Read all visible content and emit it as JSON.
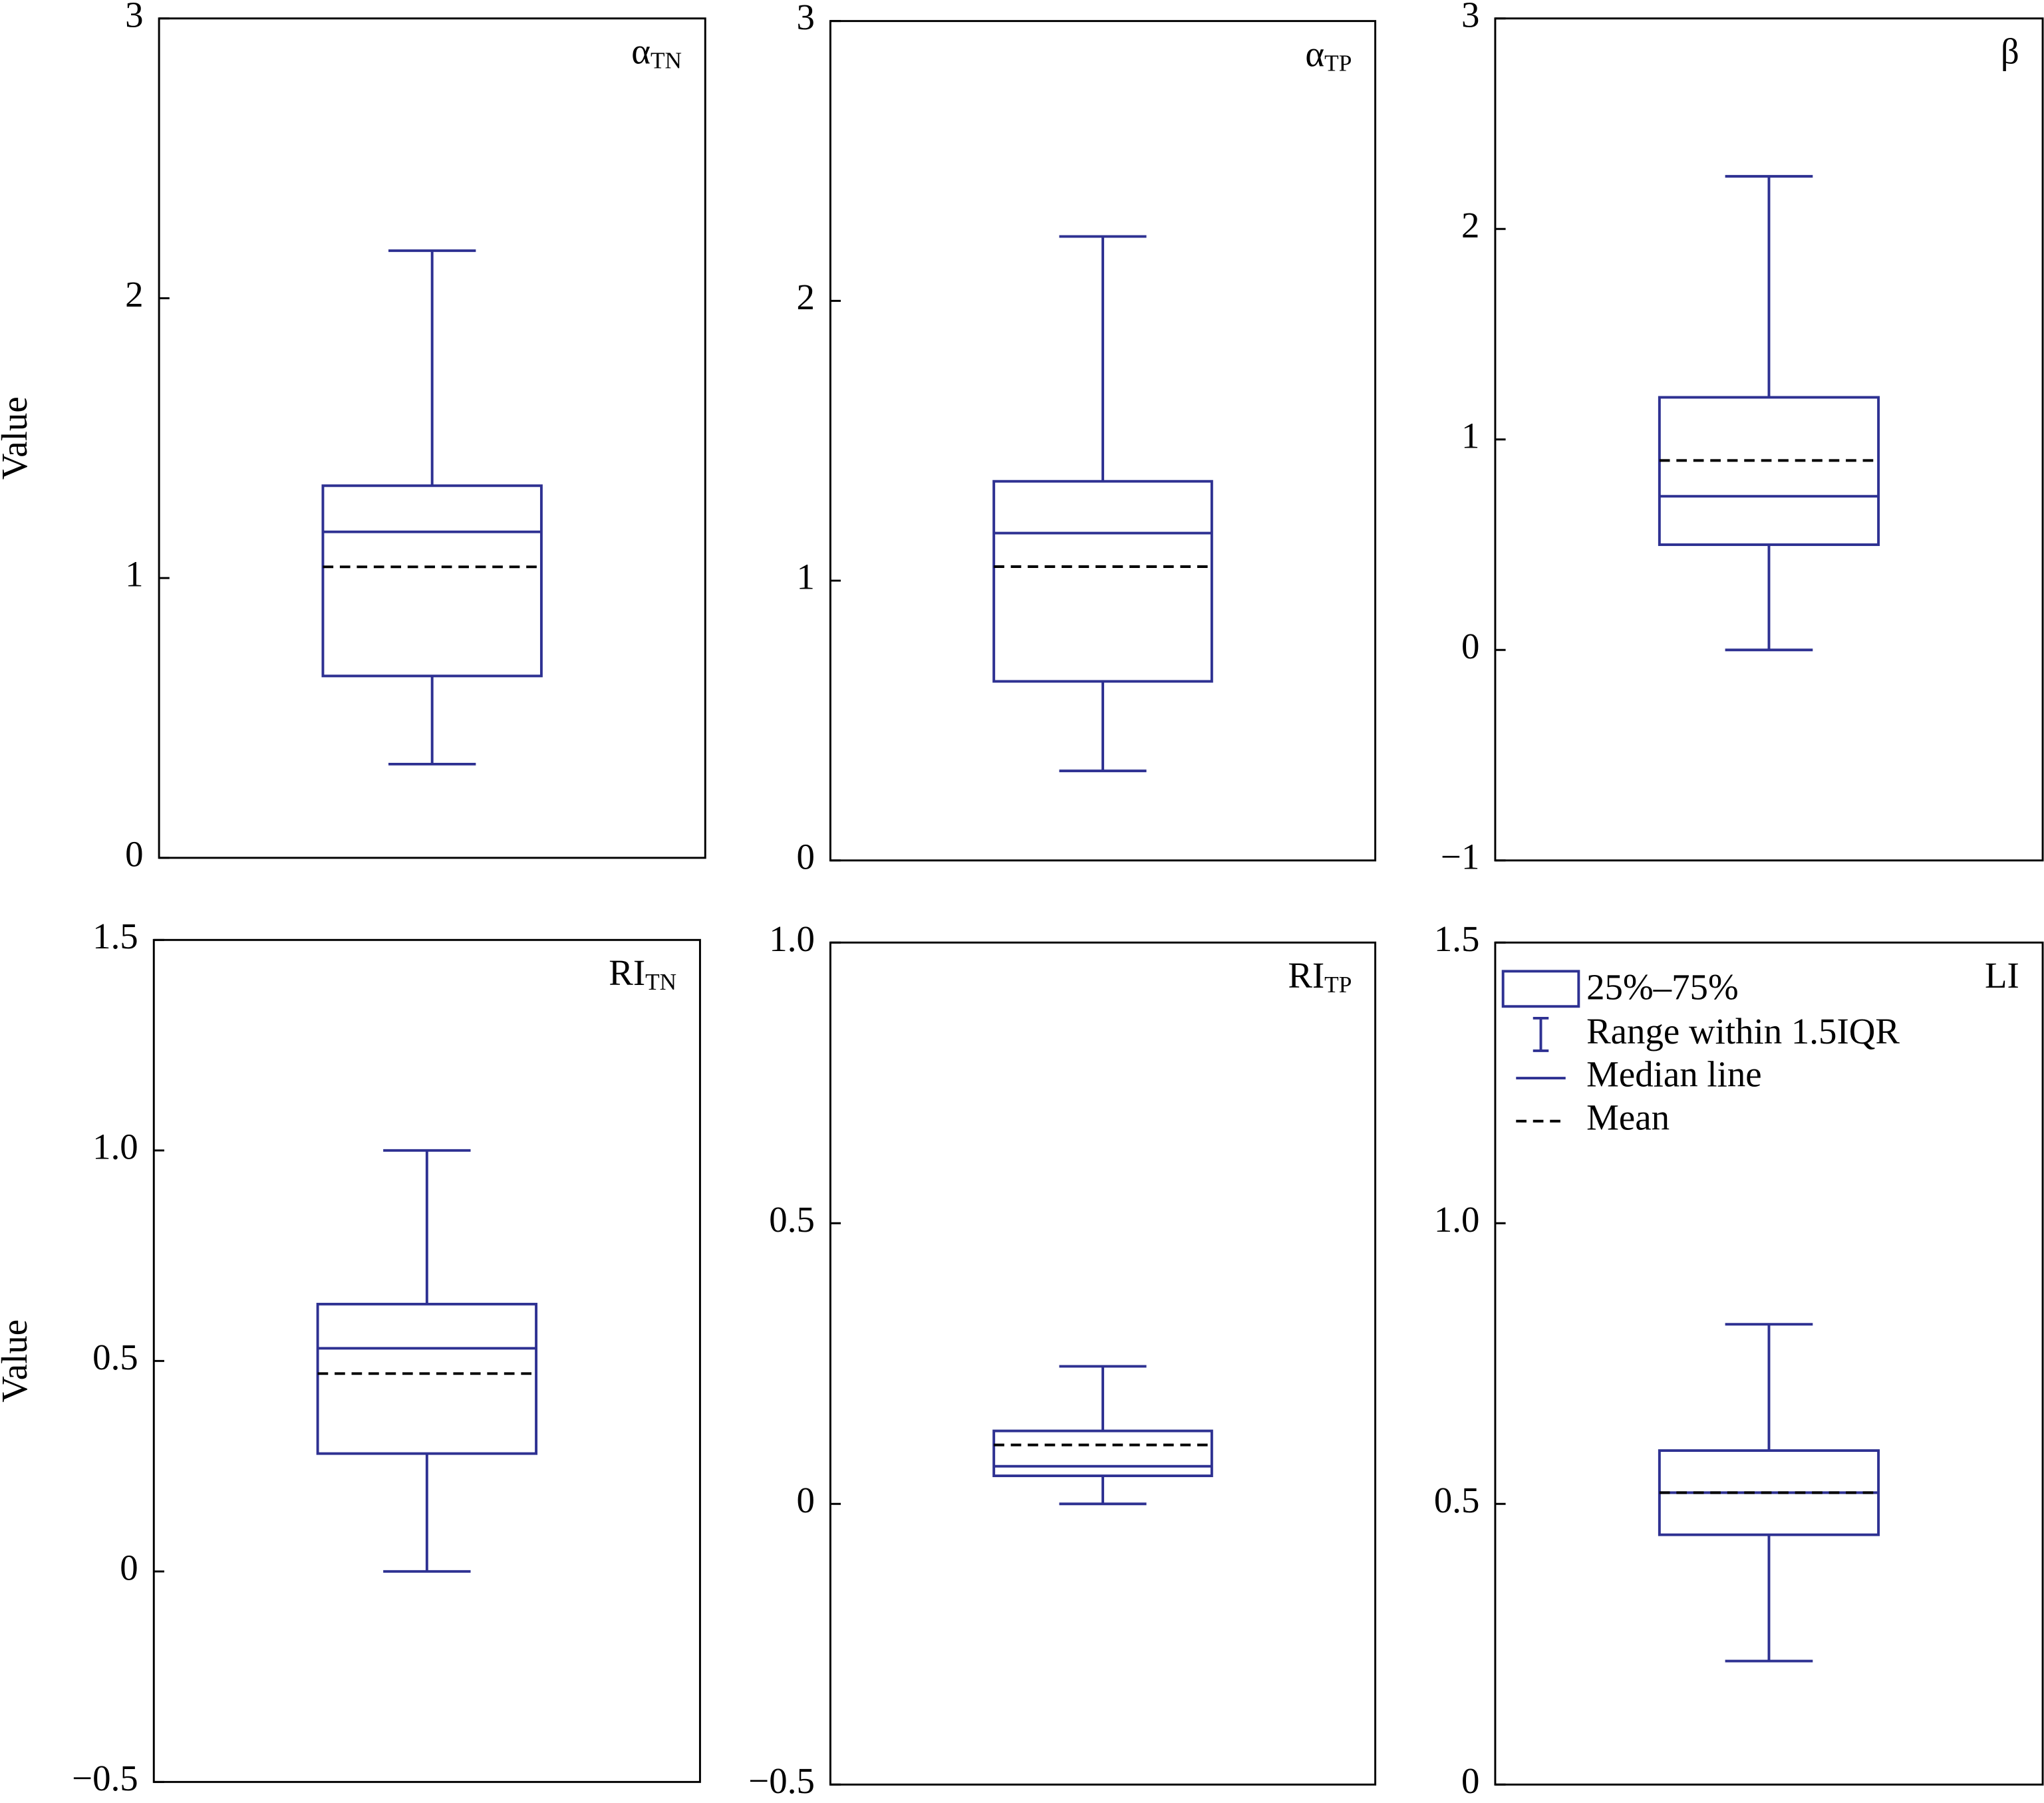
{
  "chart_data": [
    {
      "type": "box",
      "title": "α",
      "title_subscript": "TN",
      "y_label": "Value",
      "ylim": [
        0,
        3
      ],
      "yticks": [
        0,
        1,
        2,
        3
      ],
      "whisker_low": 0.335,
      "q1": 0.65,
      "median": 1.165,
      "mean": 1.04,
      "q3": 1.33,
      "whisker_high": 2.17,
      "color": "#2e3192",
      "mean_color": "#000000"
    },
    {
      "type": "box",
      "title": "α",
      "title_subscript": "TP",
      "ylim": [
        0,
        3
      ],
      "yticks": [
        0,
        1,
        2,
        3
      ],
      "whisker_low": 0.32,
      "q1": 0.64,
      "median": 1.17,
      "mean": 1.05,
      "q3": 1.355,
      "whisker_high": 2.23,
      "color": "#2e3192",
      "mean_color": "#000000"
    },
    {
      "type": "box",
      "title": "β",
      "ylim": [
        -1,
        3
      ],
      "yticks": [
        {
          "value": -1,
          "label": "−1"
        },
        0,
        1,
        2,
        3
      ],
      "whisker_low": 0,
      "q1": 0.5,
      "median": 0.73,
      "mean": 0.9,
      "q3": 1.2,
      "whisker_high": 2.25,
      "color": "#2e3192",
      "mean_color": "#000000"
    },
    {
      "type": "box",
      "title": "RI",
      "title_subscript": "TN",
      "y_label": "Value",
      "ylim": [
        -0.5,
        1.5
      ],
      "yticks": [
        {
          "value": -0.5,
          "label": "−0.5"
        },
        0,
        0.5,
        {
          "value": 1,
          "label": "1.0"
        },
        1.5
      ],
      "whisker_low": 0,
      "q1": 0.28,
      "median": 0.53,
      "mean": 0.47,
      "q3": 0.635,
      "whisker_high": 1.0,
      "color": "#2e3192",
      "mean_color": "#000000"
    },
    {
      "type": "box",
      "title": "RI",
      "title_subscript": "TP",
      "ylim": [
        -0.5,
        1
      ],
      "yticks": [
        {
          "value": -0.5,
          "label": "−0.5"
        },
        0,
        0.5,
        {
          "value": 1,
          "label": "1.0"
        }
      ],
      "whisker_low": 0,
      "q1": 0.05,
      "median": 0.067,
      "mean": 0.105,
      "q3": 0.13,
      "whisker_high": 0.245,
      "color": "#2e3192",
      "mean_color": "#000000"
    },
    {
      "type": "box",
      "title": "LI",
      "ylim": [
        0,
        1.5
      ],
      "yticks": [
        0,
        0.5,
        {
          "value": 1,
          "label": "1.0"
        },
        1.5
      ],
      "whisker_low": 0.22,
      "q1": 0.445,
      "median": 0.52,
      "mean": 0.52,
      "q3": 0.595,
      "whisker_high": 0.82,
      "color": "#2e3192",
      "mean_color": "#000000",
      "legend": [
        "25%–75%",
        "Range within 1.5IQR",
        "Median line",
        "Mean"
      ]
    }
  ]
}
